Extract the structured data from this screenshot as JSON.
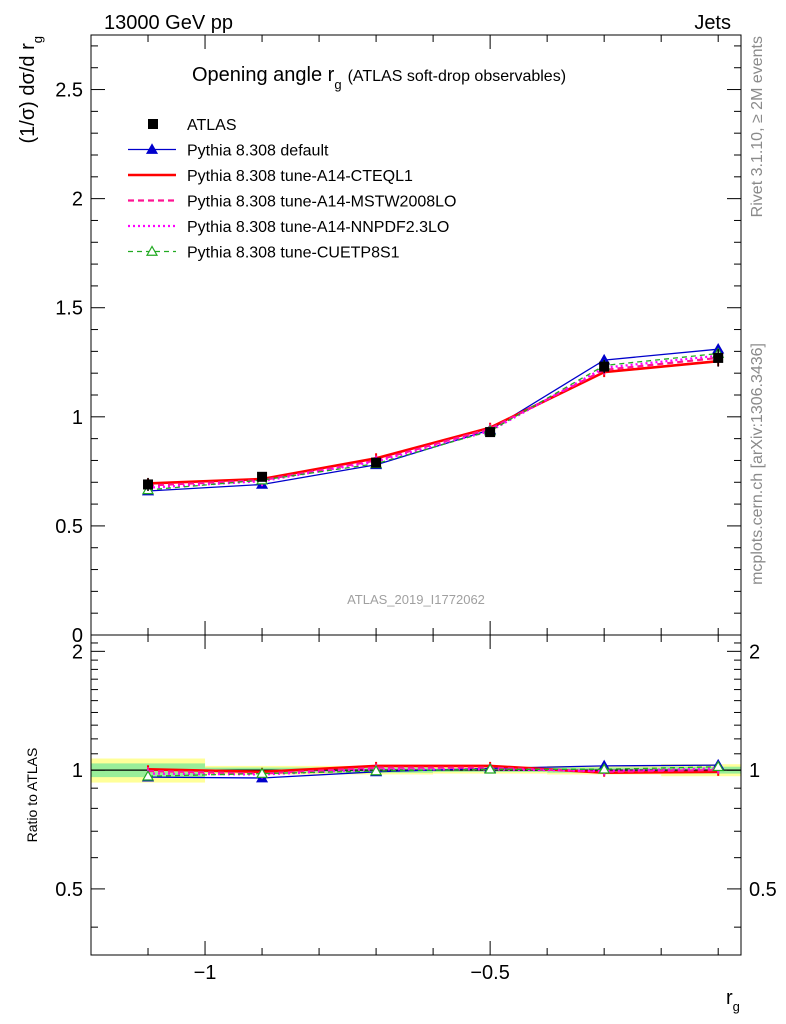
{
  "header": {
    "left": "13000 GeV pp",
    "right": "Jets"
  },
  "side": {
    "rivet": "Rivet 3.1.10, ≥ 2M events",
    "mcplots": "mcplots.cern.ch [arXiv:1306.3436]"
  },
  "chart_data": [
    {
      "type": "line",
      "title": "Opening angle r",
      "title_sub": "g",
      "title_suffix": "(ATLAS soft-drop observables)",
      "watermark": "ATLAS_2019_I1772062",
      "ylabel": "(1/σ) dσ/d r",
      "ylabel_sub": "g",
      "ylim": [
        0,
        2.75
      ],
      "yticks": [
        {
          "v": 0,
          "label": "0"
        },
        {
          "v": 0.5,
          "label": "0.5"
        },
        {
          "v": 1,
          "label": "1"
        },
        {
          "v": 1.5,
          "label": "1.5"
        },
        {
          "v": 2,
          "label": "2"
        },
        {
          "v": 2.5,
          "label": "2.5"
        }
      ],
      "xlim": [
        -1.2,
        -0.06
      ],
      "x": [
        -1.1,
        -0.9,
        -0.7,
        -0.5,
        -0.3,
        -0.1
      ],
      "data": {
        "name": "ATLAS",
        "values": [
          0.69,
          0.725,
          0.79,
          0.93,
          1.23,
          1.27
        ],
        "errors": [
          0.03,
          0.015,
          0.015,
          0.012,
          0.03,
          0.04
        ]
      },
      "series": [
        {
          "name": "Pythia 8.308 default",
          "color": "#0000cc",
          "dash": "",
          "marker": "triangle-filled",
          "width": 1.3,
          "values": [
            0.66,
            0.69,
            0.78,
            0.94,
            1.26,
            1.31
          ]
        },
        {
          "name": "Pythia 8.308 tune-A14-CTEQL1",
          "color": "#ff0000",
          "dash": "",
          "marker": "none",
          "width": 2.6,
          "values": [
            0.695,
            0.715,
            0.81,
            0.95,
            1.205,
            1.255
          ]
        },
        {
          "name": "Pythia 8.308 tune-A14-MSTW2008LO",
          "color": "#ff1493",
          "dash": "6,4",
          "marker": "none",
          "width": 2.2,
          "values": [
            0.685,
            0.71,
            0.8,
            0.945,
            1.215,
            1.27
          ]
        },
        {
          "name": "Pythia 8.308 tune-A14-NNPDF2.3LO",
          "color": "#ff00ff",
          "dash": "2,3",
          "marker": "none",
          "width": 2.2,
          "values": [
            0.675,
            0.705,
            0.795,
            0.935,
            1.225,
            1.28
          ]
        },
        {
          "name": "Pythia 8.308 tune-CUETP8S1",
          "color": "#22aa22",
          "dash": "5,4",
          "marker": "triangle-open",
          "width": 1.3,
          "values": [
            0.665,
            0.71,
            0.785,
            0.935,
            1.235,
            1.29
          ]
        }
      ],
      "legend_position": "top-left"
    },
    {
      "type": "line",
      "ylabel": "Ratio to ATLAS",
      "xlabel": "r",
      "xlabel_sub": "g",
      "ylim": [
        0.34,
        2.2
      ],
      "yticks": [
        {
          "v": 0.5,
          "label": "0.5"
        },
        {
          "v": 1,
          "label": "1"
        },
        {
          "v": 2,
          "label": "2"
        }
      ],
      "xticks": [
        {
          "v": -1,
          "label": "−1"
        },
        {
          "v": -0.5,
          "label": "−0.5"
        }
      ],
      "bands": [
        {
          "x": [
            -1.2,
            -1.0
          ],
          "stat": [
            0.96,
            1.04
          ],
          "total": [
            0.93,
            1.07
          ]
        },
        {
          "x": [
            -1.0,
            -0.8
          ],
          "stat": [
            0.985,
            1.015
          ],
          "total": [
            0.975,
            1.025
          ]
        },
        {
          "x": [
            -0.8,
            -0.6
          ],
          "stat": [
            0.985,
            1.015
          ],
          "total": [
            0.975,
            1.025
          ]
        },
        {
          "x": [
            -0.6,
            -0.4
          ],
          "stat": [
            0.99,
            1.01
          ],
          "total": [
            0.98,
            1.02
          ]
        },
        {
          "x": [
            -0.4,
            -0.2
          ],
          "stat": [
            0.985,
            1.015
          ],
          "total": [
            0.975,
            1.025
          ]
        },
        {
          "x": [
            -0.2,
            -0.06
          ],
          "stat": [
            0.98,
            1.02
          ],
          "total": [
            0.965,
            1.035
          ]
        }
      ],
      "series": [
        {
          "name": "Pythia 8.308 default",
          "values": [
            0.96,
            0.955,
            0.99,
            1.01,
            1.025,
            1.03
          ]
        },
        {
          "name": "Pythia 8.308 tune-A14-CTEQL1",
          "values": [
            1.005,
            0.99,
            1.025,
            1.025,
            0.985,
            0.99
          ]
        },
        {
          "name": "Pythia 8.308 tune-A14-MSTW2008LO",
          "values": [
            0.995,
            0.98,
            1.015,
            1.015,
            0.99,
            1.0
          ]
        },
        {
          "name": "Pythia 8.308 tune-A14-NNPDF2.3LO",
          "values": [
            0.98,
            0.975,
            1.005,
            1.005,
            0.995,
            1.01
          ]
        },
        {
          "name": "Pythia 8.308 tune-CUETP8S1",
          "values": [
            0.965,
            0.98,
            0.995,
            1.005,
            1.005,
            1.02
          ]
        }
      ]
    }
  ]
}
